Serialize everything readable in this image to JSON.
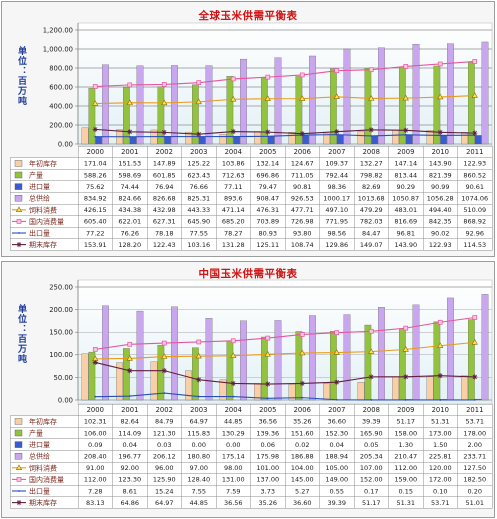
{
  "chart_data": [
    {
      "type": "bar",
      "title": "全球玉米供需平衡表",
      "ylabel": "单位：百万吨",
      "ylim": [
        0,
        1200
      ],
      "ytick_values": [
        0,
        200,
        400,
        600,
        800,
        1000,
        1200
      ],
      "ytick_labels": [
        "0.00",
        "200.00",
        "400.00",
        "600.00",
        "800.00",
        "1,000.00",
        "1,200.00"
      ],
      "grid": true,
      "legend": "left",
      "categories": [
        "2000",
        "2001",
        "2002",
        "2003",
        "2004",
        "2005",
        "2006",
        "2007",
        "2008",
        "2009",
        "2010",
        "2011"
      ],
      "series": [
        {
          "name": "年初库存",
          "kind": "bar",
          "marker": "box",
          "color": "#F8CFA6",
          "values": [
            171.04,
            151.53,
            147.89,
            125.22,
            103.86,
            132.14,
            124.67,
            109.37,
            132.27,
            147.14,
            143.9,
            122.93
          ],
          "labels": [
            "171.04",
            "151.53",
            "147.89",
            "125.22",
            "103.86",
            "132.14",
            "124.67",
            "109.37",
            "132.27",
            "147.14",
            "143.90",
            "122.93"
          ]
        },
        {
          "name": "产量",
          "kind": "bar",
          "marker": "box",
          "color": "#93C33E",
          "values": [
            588.26,
            598.69,
            601.85,
            623.43,
            712.63,
            696.86,
            711.05,
            792.44,
            798.82,
            813.44,
            821.39,
            860.52
          ],
          "labels": [
            "588.26",
            "598.69",
            "601.85",
            "623.43",
            "712.63",
            "696.86",
            "711.05",
            "792.44",
            "798.82",
            "813.44",
            "821.39",
            "860.52"
          ]
        },
        {
          "name": "进口量",
          "kind": "bar",
          "marker": "box",
          "color": "#3B5BD0",
          "values": [
            75.62,
            74.44,
            76.94,
            76.66,
            77.11,
            79.47,
            90.81,
            98.36,
            82.69,
            90.29,
            90.99,
            90.61
          ],
          "labels": [
            "75.62",
            "74.44",
            "76.94",
            "76.66",
            "77.11",
            "79.47",
            "90.81",
            "98.36",
            "82.69",
            "90.29",
            "90.99",
            "90.61"
          ]
        },
        {
          "name": "总供给",
          "kind": "bar",
          "marker": "box",
          "color": "#C9A7EE",
          "values": [
            834.92,
            824.66,
            826.68,
            825.31,
            893.6,
            908.47,
            926.53,
            1000.17,
            1013.68,
            1050.87,
            1056.28,
            1074.06
          ],
          "labels": [
            "834.92",
            "824.66",
            "826.68",
            "825.31",
            "893.6",
            "908.47",
            "926.53",
            "1000.17",
            "1013.68",
            "1050.87",
            "1056.28",
            "1074.06"
          ]
        },
        {
          "name": "饲料消费",
          "kind": "line",
          "marker": "triangle",
          "color": "#E89A1C",
          "values": [
            426.15,
            434.38,
            432.98,
            443.33,
            471.14,
            476.31,
            477.71,
            497.1,
            479.29,
            483.01,
            494.4,
            510.09
          ],
          "labels": [
            "426.15",
            "434.38",
            "432.98",
            "443.33",
            "471.14",
            "476.31",
            "477.71",
            "497.10",
            "479.29",
            "483.01",
            "494.40",
            "510.09"
          ]
        },
        {
          "name": "国内消费量",
          "kind": "line",
          "marker": "square",
          "color": "#E8559E",
          "values": [
            605.4,
            622.01,
            627.31,
            645.9,
            685.2,
            703.89,
            726.98,
            771.95,
            782.03,
            816.69,
            842.35,
            868.92
          ],
          "labels": [
            "605.40",
            "622.01",
            "627.31",
            "645.90",
            "685.20",
            "703.89",
            "726.98",
            "771.95",
            "782.03",
            "816.69",
            "842.35",
            "868.92"
          ]
        },
        {
          "name": "出口量",
          "kind": "line",
          "marker": "dot",
          "color": "#2B4FB8",
          "values": [
            77.22,
            76.26,
            78.18,
            77.55,
            78.27,
            80.93,
            93.8,
            98.56,
            84.47,
            96.81,
            90.02,
            92.96
          ],
          "labels": [
            "77.22",
            "76.26",
            "78.18",
            "77.55",
            "78.27",
            "80.93",
            "93.80",
            "98.56",
            "84.47",
            "96.81",
            "90.02",
            "92.96"
          ]
        },
        {
          "name": "期末库存",
          "kind": "line",
          "marker": "star",
          "color": "#5E1F40",
          "values": [
            153.91,
            128.2,
            122.43,
            103.16,
            131.28,
            125.11,
            108.74,
            129.86,
            149.07,
            143.9,
            122.93,
            114.53
          ],
          "labels": [
            "153.91",
            "128.20",
            "122.43",
            "103.16",
            "131.28",
            "125.11",
            "108.74",
            "129.86",
            "149.07",
            "143.90",
            "122.93",
            "114.53"
          ]
        }
      ]
    },
    {
      "type": "bar",
      "title": "中国玉米供需平衡表",
      "ylabel": "单位：百万吨",
      "ylim": [
        0,
        250
      ],
      "ytick_values": [
        0,
        50,
        100,
        150,
        200,
        250
      ],
      "ytick_labels": [
        "0.00",
        "50.00",
        "100.00",
        "150.00",
        "200.00",
        "250.00"
      ],
      "grid": true,
      "legend": "left",
      "categories": [
        "2000",
        "2001",
        "2002",
        "2003",
        "2004",
        "2005",
        "2006",
        "2007",
        "2008",
        "2009",
        "2010",
        "2011"
      ],
      "series": [
        {
          "name": "年初库存",
          "kind": "bar",
          "marker": "box",
          "color": "#F8CFA6",
          "values": [
            102.31,
            82.64,
            84.79,
            64.97,
            44.85,
            36.56,
            35.26,
            36.6,
            39.39,
            51.17,
            51.31,
            53.71
          ],
          "labels": [
            "102.31",
            "82.64",
            "84.79",
            "64.97",
            "44.85",
            "36.56",
            "35.26",
            "36.60",
            "39.39",
            "51.17",
            "51.31",
            "53.71"
          ]
        },
        {
          "name": "产量",
          "kind": "bar",
          "marker": "box",
          "color": "#93C33E",
          "values": [
            106.0,
            114.09,
            121.3,
            115.83,
            130.29,
            139.36,
            151.6,
            152.3,
            165.9,
            158.0,
            173.0,
            178.0
          ],
          "labels": [
            "106.00",
            "114.09",
            "121.30",
            "115.83",
            "130.29",
            "139.36",
            "151.60",
            "152.30",
            "165.90",
            "158.00",
            "173.00",
            "178.00"
          ]
        },
        {
          "name": "进口量",
          "kind": "bar",
          "marker": "box",
          "color": "#3B5BD0",
          "values": [
            0.09,
            0.04,
            0.03,
            0.0,
            0.0,
            0.06,
            0.02,
            0.04,
            0.05,
            1.3,
            1.5,
            2.0
          ],
          "labels": [
            "0.09",
            "0.04",
            "0.03",
            "0.00",
            "0.00",
            "0.06",
            "0.02",
            "0.04",
            "0.05",
            "1.30",
            "1.50",
            "2.00"
          ]
        },
        {
          "name": "总供给",
          "kind": "bar",
          "marker": "box",
          "color": "#C9A7EE",
          "values": [
            208.4,
            196.77,
            206.12,
            180.8,
            175.14,
            175.98,
            186.88,
            188.94,
            205.34,
            210.47,
            225.81,
            233.71
          ],
          "labels": [
            "208.40",
            "196.77",
            "206.12",
            "180.80",
            "175.14",
            "175.98",
            "186.88",
            "188.94",
            "205.34",
            "210.47",
            "225.81",
            "233.71"
          ]
        },
        {
          "name": "饲料消费",
          "kind": "line",
          "marker": "triangle",
          "color": "#E89A1C",
          "values": [
            91.0,
            92.0,
            96.0,
            97.0,
            98.0,
            101.0,
            104.0,
            105.0,
            107.0,
            112.0,
            120.0,
            127.5
          ],
          "labels": [
            "91.00",
            "92.00",
            "96.00",
            "97.00",
            "98.00",
            "101.00",
            "104.00",
            "105.00",
            "107.00",
            "112.00",
            "120.00",
            "127.50"
          ]
        },
        {
          "name": "国内消费量",
          "kind": "line",
          "marker": "square",
          "color": "#E8559E",
          "values": [
            112.0,
            123.3,
            125.9,
            128.4,
            131.0,
            137.0,
            145.0,
            149.0,
            152.0,
            159.0,
            172.0,
            182.5
          ],
          "labels": [
            "112.00",
            "123.30",
            "125.90",
            "128.40",
            "131.00",
            "137.00",
            "145.00",
            "149.00",
            "152.00",
            "159.00",
            "172.00",
            "182.50"
          ]
        },
        {
          "name": "出口量",
          "kind": "line",
          "marker": "dot",
          "color": "#2B4FB8",
          "values": [
            7.28,
            8.61,
            15.24,
            7.55,
            7.59,
            3.73,
            5.27,
            0.55,
            0.17,
            0.15,
            0.1,
            0.2
          ],
          "labels": [
            "7.28",
            "8.61",
            "15.24",
            "7.55",
            "7.59",
            "3.73",
            "5.27",
            "0.55",
            "0.17",
            "0.15",
            "0.10",
            "0.20"
          ]
        },
        {
          "name": "期末库存",
          "kind": "line",
          "marker": "star",
          "color": "#5E1F40",
          "values": [
            83.13,
            64.86,
            64.97,
            44.85,
            36.56,
            35.26,
            36.6,
            39.39,
            51.17,
            51.31,
            53.71,
            51.01
          ],
          "labels": [
            "83.13",
            "64.86",
            "64.97",
            "44.85",
            "36.56",
            "35.26",
            "36.60",
            "39.39",
            "51.17",
            "51.31",
            "53.71",
            "51.01"
          ]
        }
      ]
    }
  ]
}
